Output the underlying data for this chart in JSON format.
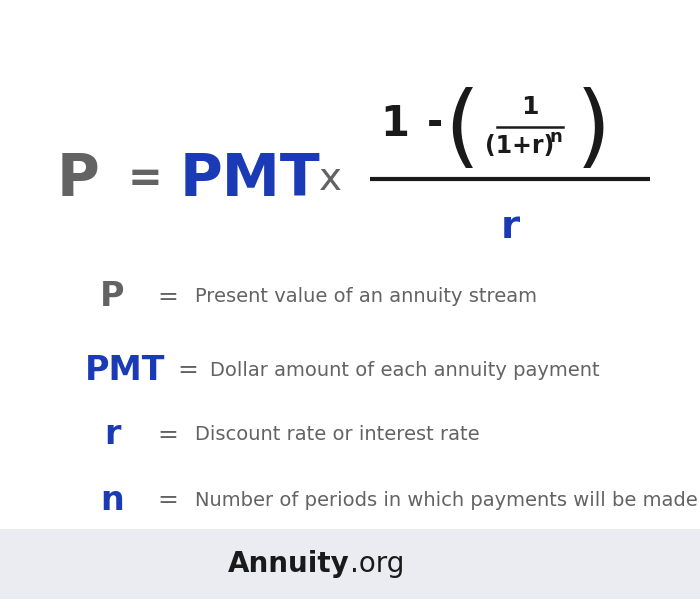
{
  "bg_color": "#ffffff",
  "footer_bg_color": "#eaecf2",
  "blue_color": "#1a3bb5",
  "dark_gray": "#636363",
  "black": "#1a1a1a",
  "title_annuity": "Annuity",
  "title_org": ".org",
  "p_desc": "Present value of an annuity stream",
  "pmt_desc": "Dollar amount of each annuity payment",
  "r_desc": "Discount rate or interest rate",
  "n_desc": "Number of periods in which payments will be made"
}
